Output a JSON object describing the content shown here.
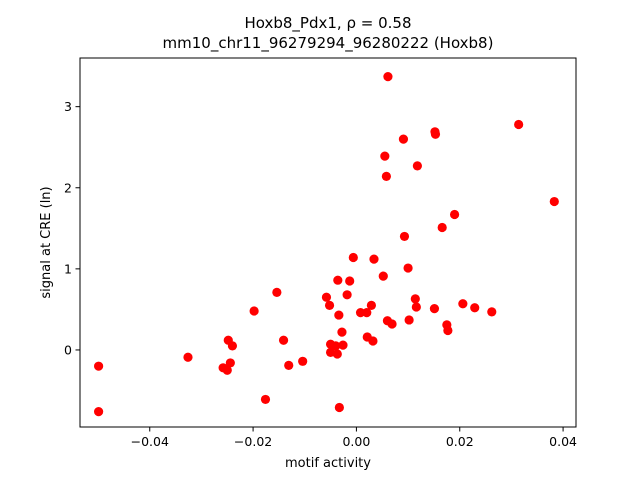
{
  "chart_data": {
    "type": "scatter",
    "title_line1": "Hoxb8_Pdx1, ρ = 0.58",
    "title_line2": "mm10_chr11_96279294_96280222 (Hoxb8)",
    "xlabel": "motif activity",
    "ylabel": "signal at CRE (ln)",
    "xlim": [
      -0.0535,
      0.0425
    ],
    "ylim": [
      -0.95,
      3.6
    ],
    "xticks": [
      -0.04,
      -0.02,
      0.0,
      0.02,
      0.04
    ],
    "xtick_labels": [
      "−0.04",
      "−0.02",
      "0.00",
      "0.02",
      "0.04"
    ],
    "yticks": [
      0,
      1,
      2,
      3
    ],
    "ytick_labels": [
      "0",
      "1",
      "2",
      "3"
    ],
    "grid": false,
    "marker_color": "#ff0000",
    "points": [
      {
        "x": -0.0499,
        "y": -0.2
      },
      {
        "x": -0.0499,
        "y": -0.76
      },
      {
        "x": -0.0326,
        "y": -0.09
      },
      {
        "x": -0.0258,
        "y": -0.22
      },
      {
        "x": -0.025,
        "y": -0.25
      },
      {
        "x": -0.0248,
        "y": 0.12
      },
      {
        "x": -0.0244,
        "y": -0.16
      },
      {
        "x": -0.024,
        "y": 0.05
      },
      {
        "x": -0.0198,
        "y": 0.48
      },
      {
        "x": -0.0176,
        "y": -0.61
      },
      {
        "x": -0.0154,
        "y": 0.71
      },
      {
        "x": -0.0141,
        "y": 0.12
      },
      {
        "x": -0.0131,
        "y": -0.19
      },
      {
        "x": -0.0104,
        "y": -0.14
      },
      {
        "x": -0.0058,
        "y": 0.65
      },
      {
        "x": -0.0052,
        "y": 0.55
      },
      {
        "x": -0.005,
        "y": 0.07
      },
      {
        "x": -0.005,
        "y": -0.03
      },
      {
        "x": -0.004,
        "y": 0.05
      },
      {
        "x": -0.0037,
        "y": -0.05
      },
      {
        "x": -0.0036,
        "y": 0.86
      },
      {
        "x": -0.0034,
        "y": 0.43
      },
      {
        "x": -0.0033,
        "y": -0.71
      },
      {
        "x": -0.0028,
        "y": 0.22
      },
      {
        "x": -0.0026,
        "y": 0.06
      },
      {
        "x": -0.0018,
        "y": 0.68
      },
      {
        "x": -0.0013,
        "y": 0.85
      },
      {
        "x": -0.0006,
        "y": 1.14
      },
      {
        "x": 0.0008,
        "y": 0.46
      },
      {
        "x": 0.002,
        "y": 0.46
      },
      {
        "x": 0.0021,
        "y": 0.16
      },
      {
        "x": 0.0029,
        "y": 0.55
      },
      {
        "x": 0.0032,
        "y": 0.11
      },
      {
        "x": 0.0034,
        "y": 1.12
      },
      {
        "x": 0.0052,
        "y": 0.91
      },
      {
        "x": 0.0055,
        "y": 2.39
      },
      {
        "x": 0.0058,
        "y": 2.14
      },
      {
        "x": 0.006,
        "y": 0.36
      },
      {
        "x": 0.0061,
        "y": 3.37
      },
      {
        "x": 0.0069,
        "y": 0.32
      },
      {
        "x": 0.0091,
        "y": 2.6
      },
      {
        "x": 0.0093,
        "y": 1.4
      },
      {
        "x": 0.01,
        "y": 1.01
      },
      {
        "x": 0.0102,
        "y": 0.37
      },
      {
        "x": 0.0114,
        "y": 0.63
      },
      {
        "x": 0.0116,
        "y": 0.53
      },
      {
        "x": 0.0118,
        "y": 2.27
      },
      {
        "x": 0.0151,
        "y": 0.51
      },
      {
        "x": 0.0152,
        "y": 2.69
      },
      {
        "x": 0.0153,
        "y": 2.66
      },
      {
        "x": 0.0166,
        "y": 1.51
      },
      {
        "x": 0.0175,
        "y": 0.31
      },
      {
        "x": 0.0177,
        "y": 0.24
      },
      {
        "x": 0.019,
        "y": 1.67
      },
      {
        "x": 0.0206,
        "y": 0.57
      },
      {
        "x": 0.0229,
        "y": 0.52
      },
      {
        "x": 0.0262,
        "y": 0.47
      },
      {
        "x": 0.0314,
        "y": 2.78
      },
      {
        "x": 0.0383,
        "y": 1.83
      }
    ]
  }
}
